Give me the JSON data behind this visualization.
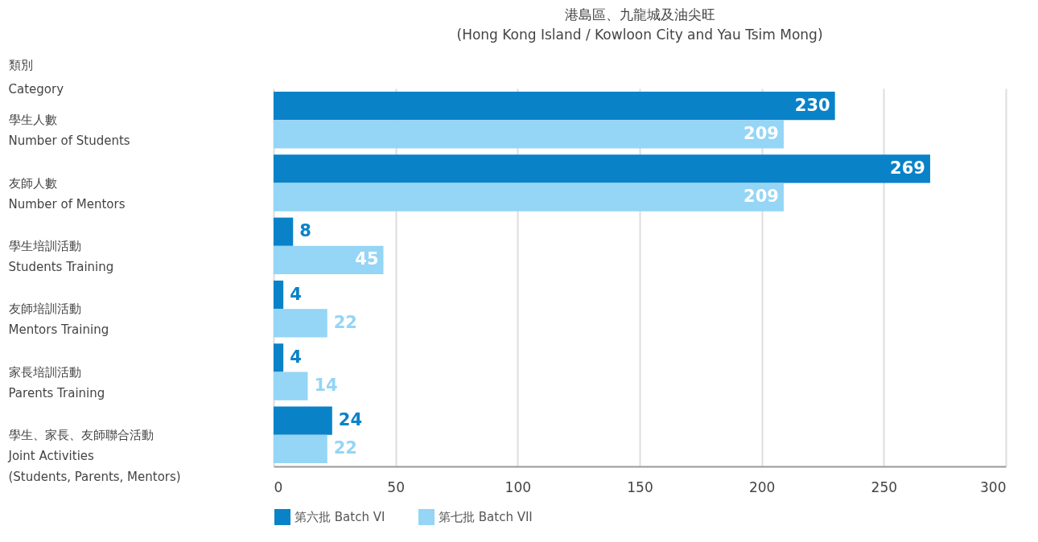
{
  "chart_data": {
    "type": "bar",
    "orientation": "horizontal",
    "title": "港島區、九龍城及油尖旺",
    "subtitle": "(Hong Kong Island / Kowloon City and Yau Tsim Mong)",
    "ylabel": "類別\nCategory",
    "categories": [
      "學生人數\nNumber of Students",
      "友師人數\nNumber of Mentors",
      "學生培訓活動\nStudents Training",
      "友師培訓活動\nMentors Training",
      "家長培訓活動\nParents Training",
      "學生、家長、友師聯合活動\nJoint Activities\n(Students, Parents, Mentors)"
    ],
    "series": [
      {
        "name": "第六批 Batch VI",
        "color": "#0a82c8",
        "values": [
          230,
          269,
          8,
          4,
          4,
          24
        ]
      },
      {
        "name": "第七批 Batch VII",
        "color": "#95d5f5",
        "values": [
          209,
          209,
          45,
          22,
          14,
          22
        ]
      }
    ],
    "xlim": [
      0,
      300
    ],
    "xticks": [
      0,
      50,
      100,
      150,
      200,
      250,
      300
    ],
    "grid": "x",
    "legend": "bottom",
    "data_labels": true
  }
}
